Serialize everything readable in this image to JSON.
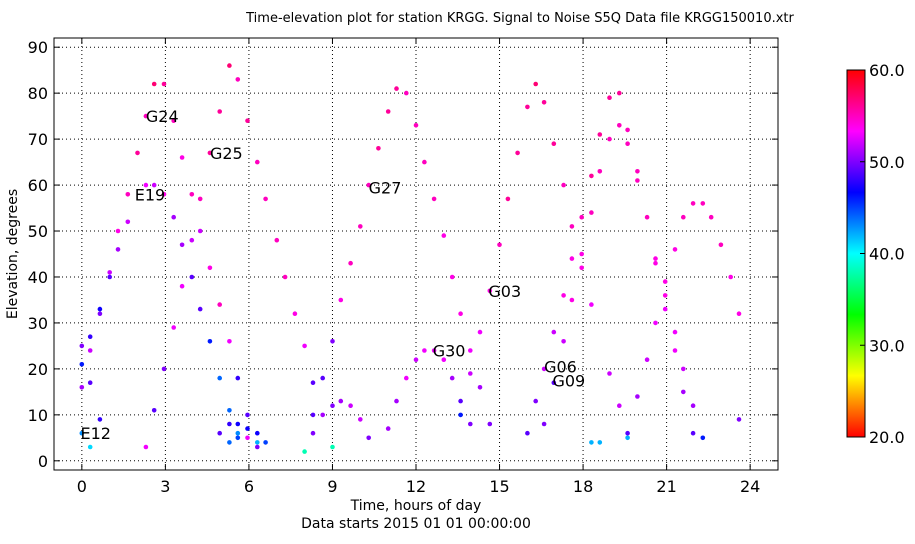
{
  "chart_data": {
    "type": "scatter",
    "title": "Time-elevation plot for station KRGG.    Signal to Noise S5Q    Data file KRGG150010.xtr",
    "xlabel": "Time, hours of day",
    "xlabel_sub": "Data starts 2015 01 01 00:00:00",
    "ylabel": "Elevation, degrees",
    "xlim": [
      -1,
      25
    ],
    "ylim": [
      -2,
      92
    ],
    "xticks": [
      0,
      3,
      6,
      9,
      12,
      15,
      18,
      21,
      24
    ],
    "yticks": [
      0,
      10,
      20,
      30,
      40,
      50,
      60,
      70,
      80,
      90
    ],
    "grid": true,
    "colorbar": {
      "min": 20,
      "max": 60,
      "ticks": [
        "20.0",
        "30.0",
        "40.0",
        "50.0",
        "60.0"
      ],
      "tick_values": [
        20,
        30,
        40,
        50,
        60
      ],
      "colormap": [
        "#ff0000",
        "#ffff00",
        "#00ff00",
        "#00ffff",
        "#0000ff",
        "#ff00ff",
        "#ff0000"
      ]
    },
    "satellite_labels": [
      {
        "text": "G24",
        "x": 2.3,
        "y": 75
      },
      {
        "text": "G25",
        "x": 4.6,
        "y": 67
      },
      {
        "text": "E19",
        "x": 1.9,
        "y": 58
      },
      {
        "text": "G27",
        "x": 10.3,
        "y": 59.5
      },
      {
        "text": "G03",
        "x": 14.6,
        "y": 37
      },
      {
        "text": "G30",
        "x": 12.6,
        "y": 24
      },
      {
        "text": "G06",
        "x": 16.6,
        "y": 20.5
      },
      {
        "text": "G09",
        "x": 16.9,
        "y": 17.5
      },
      {
        "text": "E12",
        "x": -0.05,
        "y": 6
      }
    ],
    "points": [
      [
        0.0,
        25,
        50
      ],
      [
        0.0,
        16,
        51
      ],
      [
        0.0,
        21,
        46
      ],
      [
        0.0,
        6,
        43
      ],
      [
        0.3,
        27,
        48
      ],
      [
        0.3,
        24,
        52
      ],
      [
        0.3,
        17,
        49
      ],
      [
        0.3,
        3,
        41
      ],
      [
        0.65,
        33,
        47
      ],
      [
        0.65,
        32,
        50
      ],
      [
        0.65,
        9,
        48
      ],
      [
        1.0,
        41,
        52
      ],
      [
        1.0,
        40,
        49
      ],
      [
        1.3,
        50,
        54
      ],
      [
        1.3,
        46,
        51
      ],
      [
        1.65,
        58,
        55
      ],
      [
        1.65,
        52,
        52
      ],
      [
        2.0,
        67,
        56
      ],
      [
        2.3,
        75,
        55
      ],
      [
        2.3,
        60,
        53
      ],
      [
        2.3,
        3,
        53
      ],
      [
        2.6,
        82,
        57
      ],
      [
        2.6,
        60,
        52
      ],
      [
        2.6,
        11,
        49
      ],
      [
        2.95,
        82,
        56
      ],
      [
        2.95,
        58,
        54
      ],
      [
        2.95,
        20,
        50
      ],
      [
        3.3,
        74,
        55
      ],
      [
        3.3,
        53,
        51
      ],
      [
        3.3,
        29,
        53
      ],
      [
        3.6,
        66,
        54
      ],
      [
        3.6,
        47,
        51
      ],
      [
        3.6,
        38,
        53
      ],
      [
        3.95,
        58,
        55
      ],
      [
        3.95,
        48,
        52
      ],
      [
        3.95,
        40,
        49
      ],
      [
        4.25,
        57,
        55
      ],
      [
        4.25,
        50,
        52
      ],
      [
        4.25,
        33,
        49
      ],
      [
        4.6,
        67,
        56
      ],
      [
        4.6,
        42,
        54
      ],
      [
        4.6,
        26,
        46
      ],
      [
        4.95,
        76,
        56
      ],
      [
        4.95,
        34,
        55
      ],
      [
        4.95,
        18,
        44
      ],
      [
        4.95,
        6,
        49
      ],
      [
        5.3,
        86,
        57
      ],
      [
        5.3,
        26,
        53
      ],
      [
        5.3,
        11,
        44
      ],
      [
        5.3,
        8,
        48
      ],
      [
        5.3,
        4,
        44
      ],
      [
        5.6,
        83,
        55
      ],
      [
        5.6,
        18,
        48
      ],
      [
        5.6,
        8,
        47
      ],
      [
        5.6,
        6,
        43
      ],
      [
        5.6,
        5,
        45
      ],
      [
        5.95,
        74,
        56
      ],
      [
        5.95,
        10,
        49
      ],
      [
        5.95,
        7,
        47
      ],
      [
        5.95,
        5,
        53
      ],
      [
        6.3,
        65,
        55
      ],
      [
        6.3,
        6,
        47
      ],
      [
        6.3,
        4,
        42
      ],
      [
        6.3,
        3,
        50
      ],
      [
        6.6,
        57,
        55
      ],
      [
        6.6,
        4,
        45
      ],
      [
        7.0,
        48,
        55
      ],
      [
        7.3,
        40,
        55
      ],
      [
        7.65,
        32,
        54
      ],
      [
        8.0,
        25,
        53
      ],
      [
        8.0,
        2,
        38
      ],
      [
        8.3,
        17,
        49
      ],
      [
        8.3,
        10,
        49
      ],
      [
        8.3,
        6,
        50
      ],
      [
        8.65,
        18,
        49
      ],
      [
        8.65,
        10,
        51
      ],
      [
        9.0,
        26,
        50
      ],
      [
        9.0,
        12,
        50
      ],
      [
        9.0,
        3,
        38
      ],
      [
        9.3,
        35,
        54
      ],
      [
        9.3,
        13,
        51
      ],
      [
        9.65,
        43,
        55
      ],
      [
        9.65,
        12,
        52
      ],
      [
        10.0,
        51,
        55
      ],
      [
        10.0,
        9,
        52
      ],
      [
        10.3,
        60,
        55
      ],
      [
        10.3,
        5,
        50
      ],
      [
        10.65,
        68,
        56
      ],
      [
        11.0,
        76,
        56
      ],
      [
        11.0,
        7,
        51
      ],
      [
        11.3,
        81,
        56
      ],
      [
        11.3,
        13,
        51
      ],
      [
        11.65,
        80,
        55
      ],
      [
        11.65,
        18,
        53
      ],
      [
        12.0,
        73,
        55
      ],
      [
        12.0,
        22,
        52
      ],
      [
        12.3,
        65,
        55
      ],
      [
        12.3,
        24,
        53
      ],
      [
        12.65,
        57,
        55
      ],
      [
        12.65,
        24,
        53
      ],
      [
        13.0,
        49,
        54
      ],
      [
        13.0,
        22,
        53
      ],
      [
        13.3,
        40,
        54
      ],
      [
        13.3,
        18,
        51
      ],
      [
        13.6,
        32,
        54
      ],
      [
        13.6,
        13,
        49
      ],
      [
        13.6,
        10,
        46
      ],
      [
        13.95,
        24,
        53
      ],
      [
        13.95,
        19,
        52
      ],
      [
        13.95,
        8,
        50
      ],
      [
        14.3,
        28,
        53
      ],
      [
        14.3,
        16,
        51
      ],
      [
        14.65,
        37,
        54
      ],
      [
        14.65,
        8,
        50
      ],
      [
        15.0,
        47,
        55
      ],
      [
        15.3,
        57,
        56
      ],
      [
        15.65,
        67,
        56
      ],
      [
        16.0,
        77,
        56
      ],
      [
        16.0,
        6,
        49
      ],
      [
        16.3,
        82,
        57
      ],
      [
        16.3,
        13,
        50
      ],
      [
        16.6,
        78,
        56
      ],
      [
        16.6,
        20,
        52
      ],
      [
        16.6,
        8,
        50
      ],
      [
        16.95,
        69,
        56
      ],
      [
        16.95,
        28,
        52
      ],
      [
        16.95,
        17,
        49
      ],
      [
        17.3,
        60,
        55
      ],
      [
        17.3,
        36,
        54
      ],
      [
        17.3,
        26,
        52
      ],
      [
        17.6,
        51,
        55
      ],
      [
        17.6,
        44,
        54
      ],
      [
        17.6,
        35,
        54
      ],
      [
        17.95,
        53,
        55
      ],
      [
        17.95,
        45,
        54
      ],
      [
        17.95,
        42,
        54
      ],
      [
        18.3,
        62,
        56
      ],
      [
        18.3,
        54,
        55
      ],
      [
        18.3,
        34,
        53
      ],
      [
        18.3,
        4,
        42
      ],
      [
        18.6,
        71,
        56
      ],
      [
        18.6,
        63,
        55
      ],
      [
        18.6,
        4,
        42
      ],
      [
        18.95,
        79,
        56
      ],
      [
        18.95,
        70,
        55
      ],
      [
        18.95,
        19,
        52
      ],
      [
        19.3,
        80,
        56
      ],
      [
        19.3,
        73,
        55
      ],
      [
        19.3,
        12,
        52
      ],
      [
        19.6,
        72,
        55
      ],
      [
        19.6,
        69,
        55
      ],
      [
        19.6,
        6,
        49
      ],
      [
        19.6,
        5,
        42
      ],
      [
        19.95,
        63,
        55
      ],
      [
        19.95,
        61,
        55
      ],
      [
        19.95,
        14,
        51
      ],
      [
        20.3,
        53,
        55
      ],
      [
        20.3,
        22,
        52
      ],
      [
        20.6,
        44,
        54
      ],
      [
        20.6,
        43,
        54
      ],
      [
        20.6,
        30,
        53
      ],
      [
        20.95,
        39,
        54
      ],
      [
        20.95,
        36,
        54
      ],
      [
        20.95,
        33,
        53
      ],
      [
        21.3,
        46,
        54
      ],
      [
        21.3,
        28,
        53
      ],
      [
        21.3,
        24,
        53
      ],
      [
        21.6,
        53,
        55
      ],
      [
        21.6,
        20,
        52
      ],
      [
        21.6,
        15,
        51
      ],
      [
        21.95,
        56,
        55
      ],
      [
        21.95,
        12,
        51
      ],
      [
        21.95,
        6,
        49
      ],
      [
        22.3,
        56,
        55
      ],
      [
        22.3,
        5,
        46
      ],
      [
        22.6,
        53,
        55
      ],
      [
        22.95,
        47,
        55
      ],
      [
        23.3,
        40,
        54
      ],
      [
        23.6,
        32,
        54
      ],
      [
        23.6,
        9,
        50
      ]
    ]
  }
}
